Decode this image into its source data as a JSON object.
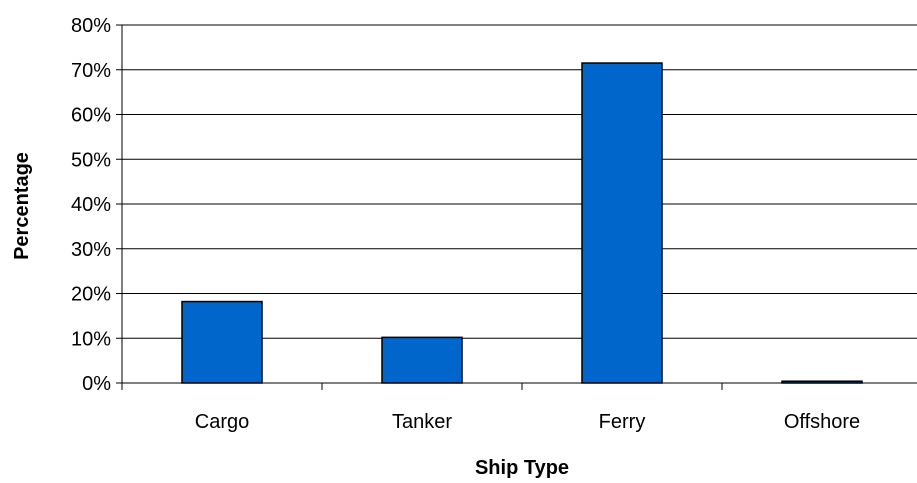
{
  "chart_data": {
    "type": "bar",
    "title": "",
    "xlabel": "Ship Type",
    "ylabel": "Percentage",
    "categories": [
      "Cargo",
      "Tanker",
      "Ferry",
      "Offshore"
    ],
    "values": [
      18.2,
      10.2,
      71.5,
      0.4
    ],
    "ylim": [
      0,
      80
    ],
    "yticks": [
      0,
      10,
      20,
      30,
      40,
      50,
      60,
      70,
      80
    ],
    "ytick_labels": [
      "0%",
      "10%",
      "20%",
      "30%",
      "40%",
      "50%",
      "60%",
      "70%",
      "80%"
    ],
    "grid": true,
    "legend": "none",
    "colors": {
      "bar_fill": "#0066CC",
      "bar_stroke": "#000000",
      "grid": "#000000",
      "axis": "#000000"
    }
  }
}
